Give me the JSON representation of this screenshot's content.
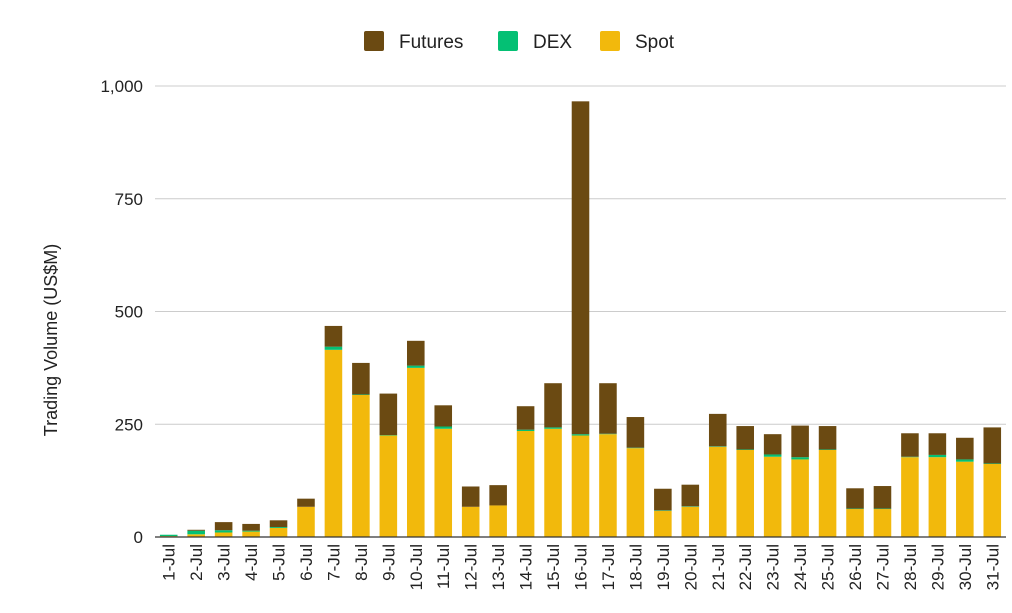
{
  "chart_data": {
    "type": "bar",
    "stacked": true,
    "title": "",
    "xlabel": "",
    "ylabel": "Trading Volume (US$M)",
    "ylim": [
      0,
      1000
    ],
    "yticks": [
      0,
      250,
      500,
      750,
      1000
    ],
    "ytick_labels": [
      "0",
      "250",
      "500",
      "750",
      "1,000"
    ],
    "grid": true,
    "legend_position": "top",
    "categories": [
      "1-Jul",
      "2-Jul",
      "3-Jul",
      "4-Jul",
      "5-Jul",
      "6-Jul",
      "7-Jul",
      "8-Jul",
      "9-Jul",
      "10-Jul",
      "11-Jul",
      "12-Jul",
      "13-Jul",
      "14-Jul",
      "15-Jul",
      "16-Jul",
      "17-Jul",
      "18-Jul",
      "19-Jul",
      "20-Jul",
      "21-Jul",
      "22-Jul",
      "23-Jul",
      "24-Jul",
      "25-Jul",
      "26-Jul",
      "27-Jul",
      "28-Jul",
      "29-Jul",
      "30-Jul",
      "31-Jul"
    ],
    "series": [
      {
        "name": "Spot",
        "color": "#F2B90C",
        "values": [
          2,
          6,
          10,
          12,
          20,
          67,
          415,
          315,
          225,
          375,
          240,
          67,
          70,
          235,
          240,
          225,
          228,
          197,
          58,
          67,
          200,
          193,
          178,
          172,
          193,
          62,
          62,
          177,
          177,
          167,
          162
        ]
      },
      {
        "name": "DEX",
        "color": "#04C074",
        "values": [
          3,
          8,
          5,
          2,
          2,
          0,
          7,
          1,
          1,
          5,
          5,
          0,
          0,
          3,
          3,
          3,
          1,
          1,
          1,
          1,
          1,
          1,
          5,
          5,
          1,
          1,
          1,
          1,
          5,
          5,
          1
        ]
      },
      {
        "name": "Futures",
        "color": "#6B4A12",
        "values": [
          0,
          2,
          18,
          15,
          15,
          18,
          46,
          70,
          92,
          55,
          47,
          45,
          45,
          52,
          98,
          738,
          112,
          68,
          48,
          48,
          72,
          52,
          45,
          70,
          52,
          45,
          50,
          52,
          48,
          48,
          80
        ]
      }
    ],
    "legend_order": [
      "Futures",
      "DEX",
      "Spot"
    ]
  }
}
